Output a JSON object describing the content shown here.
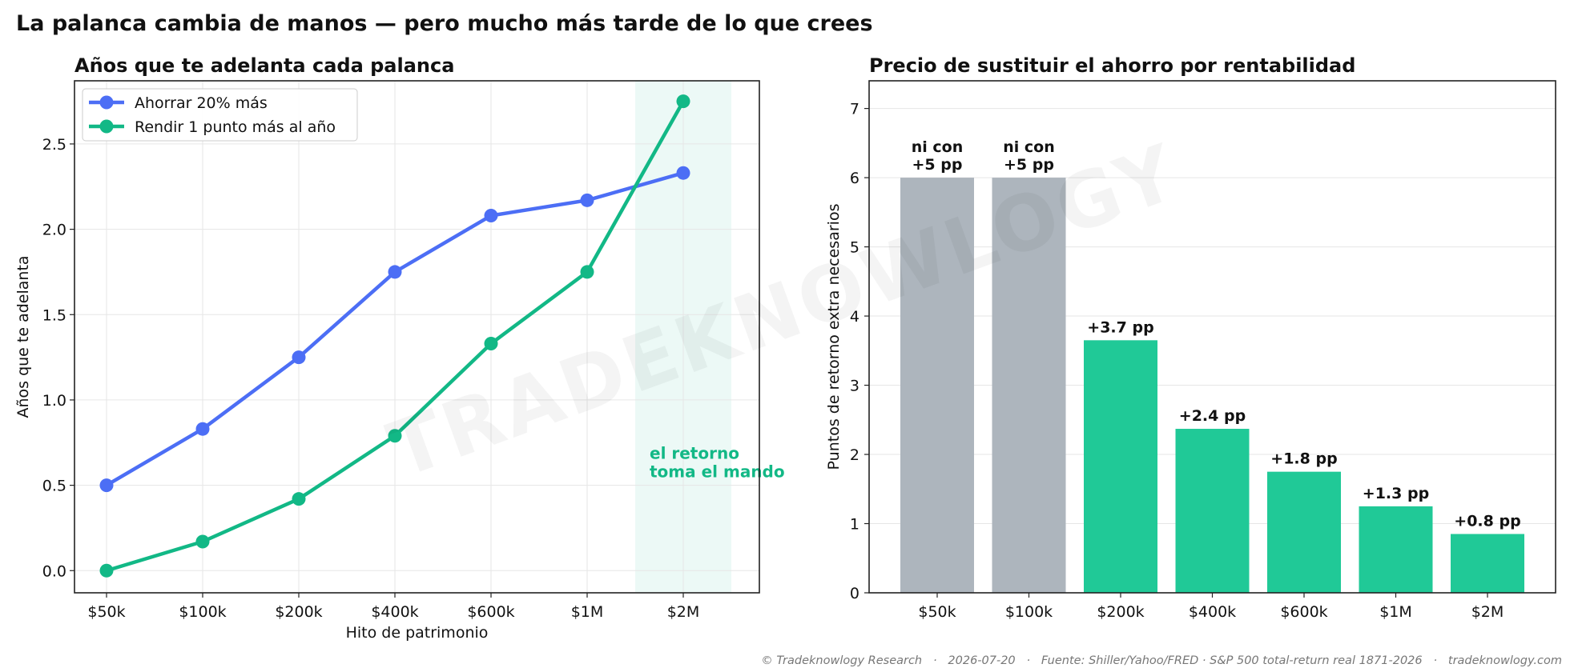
{
  "suptitle": "La palanca cambia de manos — pero mucho más tarde de lo que crees",
  "watermark": "TRADEKNOWLOGY",
  "footer": "© Tradeknowlogy Research   ·   2026-07-20   ·   Fuente: Shiller/Yahoo/FRED · S&P 500 total-return real 1871-2026   ·   tradeknowlogy.com",
  "chart_data": [
    {
      "type": "line",
      "title": "Años que te adelanta cada palanca",
      "xlabel": "Hito de patrimonio",
      "ylabel": "Años que te adelanta",
      "categories": [
        "$50k",
        "$100k",
        "$200k",
        "$400k",
        "$600k",
        "$1M",
        "$2M"
      ],
      "ylim": [
        -0.13,
        2.87
      ],
      "yticks": [
        "0.0",
        "0.5",
        "1.0",
        "1.5",
        "2.0",
        "2.5"
      ],
      "grid": true,
      "legend_position": "top-left",
      "series": [
        {
          "name": "Ahorrar 20% más",
          "color": "#4c6ef5",
          "values": [
            0.5,
            0.83,
            1.25,
            1.75,
            2.08,
            2.17,
            2.33
          ]
        },
        {
          "name": "Rendir 1 punto más al año",
          "color": "#12b886",
          "values": [
            0.0,
            0.17,
            0.42,
            0.79,
            1.33,
            1.75,
            2.75
          ]
        }
      ],
      "shaded_region": {
        "from_category": "$1M",
        "to_category": "$2M",
        "color": "#12b886"
      },
      "annotation": {
        "lines": [
          "el retorno",
          "toma el mando"
        ],
        "x_category": "$2M",
        "y": 0.6,
        "color": "#12b886"
      }
    },
    {
      "type": "bar",
      "title": "Precio de sustituir el ahorro por rentabilidad",
      "xlabel": "",
      "ylabel": "Puntos de retorno extra necesarios",
      "categories": [
        "$50k",
        "$100k",
        "$200k",
        "$400k",
        "$600k",
        "$1M",
        "$2M"
      ],
      "values": [
        6.0,
        6.0,
        3.65,
        2.37,
        1.75,
        1.25,
        0.85
      ],
      "labels": [
        [
          "ni con",
          "+5 pp"
        ],
        [
          "ni con",
          "+5 pp"
        ],
        [
          "+3.7 pp"
        ],
        [
          "+2.4 pp"
        ],
        [
          "+1.8 pp"
        ],
        [
          "+1.3 pp"
        ],
        [
          "+0.8 pp"
        ]
      ],
      "colors": [
        "#adb5bd",
        "#adb5bd",
        "#20c997",
        "#20c997",
        "#20c997",
        "#20c997",
        "#20c997"
      ],
      "ylim": [
        0,
        7.4
      ],
      "yticks": [
        "0",
        "1",
        "2",
        "3",
        "4",
        "5",
        "6",
        "7"
      ],
      "grid": true
    }
  ]
}
